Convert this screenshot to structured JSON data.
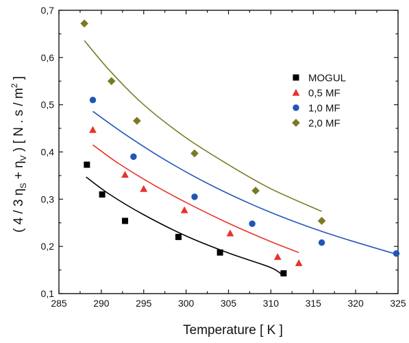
{
  "chart_data": {
    "type": "scatter",
    "title": "",
    "xlabel": "Temperature [ K ]",
    "ylabel": "( 4 / 3 η",
    "ylabel_sub1": "S",
    "ylabel_mid": " + η",
    "ylabel_sub2": "V",
    "ylabel_units": " )  [ N . s / m",
    "ylabel_sup": "2",
    "ylabel_end": " ]",
    "xlim": [
      285,
      325
    ],
    "ylim": [
      0.1,
      0.7
    ],
    "x_ticks": [
      "285",
      "290",
      "295",
      "300",
      "305",
      "310",
      "315",
      "320",
      "325"
    ],
    "y_ticks": [
      "0,1",
      "0,2",
      "0,3",
      "0,4",
      "0,5",
      "0,6",
      "0,7"
    ],
    "grid": false,
    "legend_position": "top-right",
    "series": [
      {
        "name": "MOGUL",
        "marker": "square",
        "color": "#000000",
        "points": [
          [
            288.3,
            0.373
          ],
          [
            290.1,
            0.31
          ],
          [
            292.8,
            0.254
          ],
          [
            299.1,
            0.22
          ],
          [
            304.0,
            0.187
          ],
          [
            311.5,
            0.143
          ]
        ],
        "fit": [
          [
            288.2,
            0.347
          ],
          [
            291,
            0.31
          ],
          [
            295,
            0.267
          ],
          [
            300,
            0.222
          ],
          [
            305,
            0.186
          ],
          [
            310,
            0.155
          ],
          [
            311.5,
            0.137
          ]
        ]
      },
      {
        "name": "0,5 MF",
        "marker": "triangle",
        "color": "#e8332b",
        "points": [
          [
            289.0,
            0.447
          ],
          [
            292.8,
            0.352
          ],
          [
            295.0,
            0.322
          ],
          [
            299.8,
            0.277
          ],
          [
            305.2,
            0.228
          ],
          [
            310.8,
            0.178
          ],
          [
            313.3,
            0.165
          ]
        ],
        "fit": [
          [
            289.0,
            0.415
          ],
          [
            292,
            0.376
          ],
          [
            296,
            0.332
          ],
          [
            300,
            0.293
          ],
          [
            305,
            0.249
          ],
          [
            310,
            0.21
          ],
          [
            313.3,
            0.187
          ]
        ]
      },
      {
        "name": "1,0 MF",
        "marker": "circle",
        "color": "#2156b8",
        "points": [
          [
            289.0,
            0.51
          ],
          [
            293.8,
            0.39
          ],
          [
            301.0,
            0.305
          ],
          [
            307.8,
            0.248
          ],
          [
            316.0,
            0.208
          ],
          [
            324.8,
            0.185
          ]
        ],
        "fit": [
          [
            289.0,
            0.486
          ],
          [
            293,
            0.435
          ],
          [
            298,
            0.378
          ],
          [
            303,
            0.329
          ],
          [
            308,
            0.287
          ],
          [
            313,
            0.251
          ],
          [
            318,
            0.22
          ],
          [
            324.7,
            0.184
          ]
        ]
      },
      {
        "name": "2,0 MF",
        "marker": "diamond",
        "color": "#7a7a25",
        "points": [
          [
            288.0,
            0.672
          ],
          [
            291.2,
            0.55
          ],
          [
            294.2,
            0.466
          ],
          [
            301.0,
            0.397
          ],
          [
            308.2,
            0.318
          ],
          [
            316.0,
            0.254
          ]
        ],
        "fit": [
          [
            288.0,
            0.636
          ],
          [
            291,
            0.572
          ],
          [
            295,
            0.5
          ],
          [
            300,
            0.43
          ],
          [
            305,
            0.373
          ],
          [
            310,
            0.322
          ],
          [
            316.0,
            0.274
          ]
        ]
      }
    ]
  }
}
